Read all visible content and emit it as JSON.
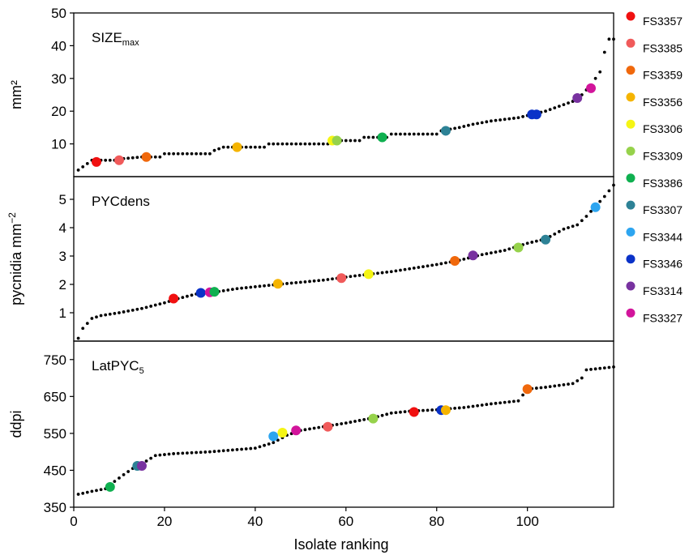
{
  "chart_data": {
    "type": "scatter",
    "xlabel": "Isolate ranking",
    "xlim": [
      0,
      119
    ],
    "xticks": [
      0,
      20,
      40,
      60,
      80,
      100
    ],
    "legend_position": "right",
    "legend": [
      {
        "name": "FS3357",
        "color": "#f01010"
      },
      {
        "name": "FS3385",
        "color": "#f05a5a"
      },
      {
        "name": "FS3359",
        "color": "#f0680c"
      },
      {
        "name": "FS3356",
        "color": "#f5b400"
      },
      {
        "name": "FS3306",
        "color": "#f5f514"
      },
      {
        "name": "FS3309",
        "color": "#96d24b"
      },
      {
        "name": "FS3386",
        "color": "#0fb050"
      },
      {
        "name": "FS3307",
        "color": "#2d8296"
      },
      {
        "name": "FS3344",
        "color": "#2da5f0"
      },
      {
        "name": "FS3346",
        "color": "#0a32c8"
      },
      {
        "name": "FS3314",
        "color": "#7832a0"
      },
      {
        "name": "FS3327",
        "color": "#d2149b"
      }
    ],
    "panels": [
      {
        "label_main": "SIZE",
        "label_sub": "max",
        "ylabel": "mm²",
        "ylim": [
          0,
          50
        ],
        "yticks": [
          10,
          20,
          30,
          40,
          50
        ],
        "curve": [
          [
            1,
            2
          ],
          [
            2,
            3
          ],
          [
            3,
            4
          ],
          [
            4,
            5
          ],
          [
            10,
            5
          ],
          [
            11,
            5.5
          ],
          [
            15,
            6
          ],
          [
            19,
            6
          ],
          [
            20,
            7
          ],
          [
            30,
            7
          ],
          [
            31,
            8
          ],
          [
            33,
            9
          ],
          [
            42,
            9
          ],
          [
            43,
            10
          ],
          [
            56,
            10
          ],
          [
            57,
            11
          ],
          [
            63,
            11
          ],
          [
            64,
            12
          ],
          [
            69,
            12
          ],
          [
            70,
            13
          ],
          [
            80,
            13
          ],
          [
            81,
            14
          ],
          [
            85,
            15
          ],
          [
            88,
            16
          ],
          [
            92,
            17
          ],
          [
            98,
            18
          ],
          [
            101,
            19
          ],
          [
            104,
            20
          ],
          [
            106,
            21
          ],
          [
            108,
            22
          ],
          [
            110,
            23
          ],
          [
            112,
            25
          ],
          [
            114,
            28
          ],
          [
            116,
            32
          ],
          [
            117,
            38
          ],
          [
            118,
            42
          ]
        ],
        "highlights": [
          {
            "isolate": "FS3357",
            "x": 5,
            "y": 4.5
          },
          {
            "isolate": "FS3385",
            "x": 10,
            "y": 5
          },
          {
            "isolate": "FS3359",
            "x": 16,
            "y": 6
          },
          {
            "isolate": "FS3356",
            "x": 36,
            "y": 9
          },
          {
            "isolate": "FS3306",
            "x": 57,
            "y": 11
          },
          {
            "isolate": "FS3309",
            "x": 58,
            "y": 11
          },
          {
            "isolate": "FS3386",
            "x": 68,
            "y": 12
          },
          {
            "isolate": "FS3307",
            "x": 82,
            "y": 14
          },
          {
            "isolate": "FS3346",
            "x": 101,
            "y": 19
          },
          {
            "isolate": "FS3346",
            "x": 102,
            "y": 19
          },
          {
            "isolate": "FS3314",
            "x": 111,
            "y": 24
          },
          {
            "isolate": "FS3327",
            "x": 114,
            "y": 27
          }
        ]
      },
      {
        "label_main": "PYCdens",
        "label_sub": "",
        "ylabel": "pycnidia mm",
        "ylabel_sup": "−2",
        "ylim": [
          0,
          5.8
        ],
        "yticks": [
          1,
          2,
          3,
          4,
          5
        ],
        "curve": [
          [
            1,
            0.1
          ],
          [
            2,
            0.45
          ],
          [
            4,
            0.8
          ],
          [
            6,
            0.9
          ],
          [
            10,
            1.0
          ],
          [
            15,
            1.15
          ],
          [
            20,
            1.35
          ],
          [
            23,
            1.5
          ],
          [
            28,
            1.7
          ],
          [
            32,
            1.75
          ],
          [
            36,
            1.85
          ],
          [
            45,
            2.0
          ],
          [
            55,
            2.15
          ],
          [
            62,
            2.3
          ],
          [
            70,
            2.45
          ],
          [
            80,
            2.7
          ],
          [
            85,
            2.85
          ],
          [
            90,
            3.05
          ],
          [
            95,
            3.2
          ],
          [
            100,
            3.45
          ],
          [
            104,
            3.6
          ],
          [
            108,
            3.95
          ],
          [
            111,
            4.1
          ],
          [
            113,
            4.4
          ],
          [
            115,
            4.75
          ],
          [
            117,
            5.1
          ],
          [
            119,
            5.5
          ]
        ],
        "highlights": [
          {
            "isolate": "FS3357",
            "x": 22,
            "y": 1.5
          },
          {
            "isolate": "FS3346",
            "x": 28,
            "y": 1.7
          },
          {
            "isolate": "FS3327",
            "x": 30,
            "y": 1.72
          },
          {
            "isolate": "FS3386",
            "x": 31,
            "y": 1.74
          },
          {
            "isolate": "FS3356",
            "x": 45,
            "y": 2.02
          },
          {
            "isolate": "FS3385",
            "x": 59,
            "y": 2.22
          },
          {
            "isolate": "FS3306",
            "x": 65,
            "y": 2.36
          },
          {
            "isolate": "FS3359",
            "x": 84,
            "y": 2.83
          },
          {
            "isolate": "FS3314",
            "x": 88,
            "y": 3.02
          },
          {
            "isolate": "FS3309",
            "x": 98,
            "y": 3.3
          },
          {
            "isolate": "FS3307",
            "x": 104,
            "y": 3.58
          },
          {
            "isolate": "FS3344",
            "x": 115,
            "y": 4.72
          }
        ]
      },
      {
        "label_main": "LatPYC",
        "label_sub": "5",
        "ylabel": "ddpi",
        "ylim": [
          350,
          800
        ],
        "yticks": [
          350,
          450,
          550,
          650,
          750
        ],
        "curve": [
          [
            1,
            385
          ],
          [
            4,
            393
          ],
          [
            7,
            400
          ],
          [
            9,
            420
          ],
          [
            11,
            438
          ],
          [
            13,
            455
          ],
          [
            16,
            475
          ],
          [
            18,
            490
          ],
          [
            22,
            495
          ],
          [
            30,
            500
          ],
          [
            40,
            510
          ],
          [
            44,
            525
          ],
          [
            47,
            545
          ],
          [
            50,
            558
          ],
          [
            55,
            568
          ],
          [
            60,
            578
          ],
          [
            66,
            592
          ],
          [
            70,
            605
          ],
          [
            74,
            610
          ],
          [
            80,
            614
          ],
          [
            86,
            620
          ],
          [
            92,
            630
          ],
          [
            98,
            638
          ],
          [
            100,
            670
          ],
          [
            104,
            675
          ],
          [
            110,
            685
          ],
          [
            112,
            700
          ],
          [
            113,
            722
          ],
          [
            119,
            730
          ]
        ],
        "highlights": [
          {
            "isolate": "FS3386",
            "x": 8,
            "y": 405
          },
          {
            "isolate": "FS3307",
            "x": 14,
            "y": 462
          },
          {
            "isolate": "FS3314",
            "x": 15,
            "y": 462
          },
          {
            "isolate": "FS3344",
            "x": 44,
            "y": 542
          },
          {
            "isolate": "FS3306",
            "x": 46,
            "y": 552
          },
          {
            "isolate": "FS3327",
            "x": 49,
            "y": 558
          },
          {
            "isolate": "FS3385",
            "x": 56,
            "y": 568
          },
          {
            "isolate": "FS3309",
            "x": 66,
            "y": 590
          },
          {
            "isolate": "FS3357",
            "x": 75,
            "y": 608
          },
          {
            "isolate": "FS3346",
            "x": 81,
            "y": 613
          },
          {
            "isolate": "FS3356",
            "x": 82,
            "y": 613
          },
          {
            "isolate": "FS3359",
            "x": 100,
            "y": 670
          }
        ]
      }
    ]
  }
}
